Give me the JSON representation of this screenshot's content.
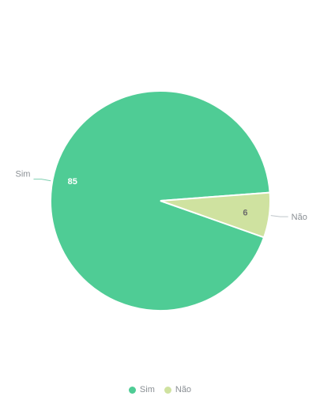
{
  "chart_data": {
    "type": "pie",
    "title": "",
    "subtitle": "",
    "categories": [
      "Sim",
      "Não"
    ],
    "values": [
      85,
      6
    ],
    "colors": [
      "#4fcc95",
      "#cfe2a0"
    ],
    "legend_position": "bottom-center",
    "data_labels": [
      "85",
      "6"
    ]
  }
}
